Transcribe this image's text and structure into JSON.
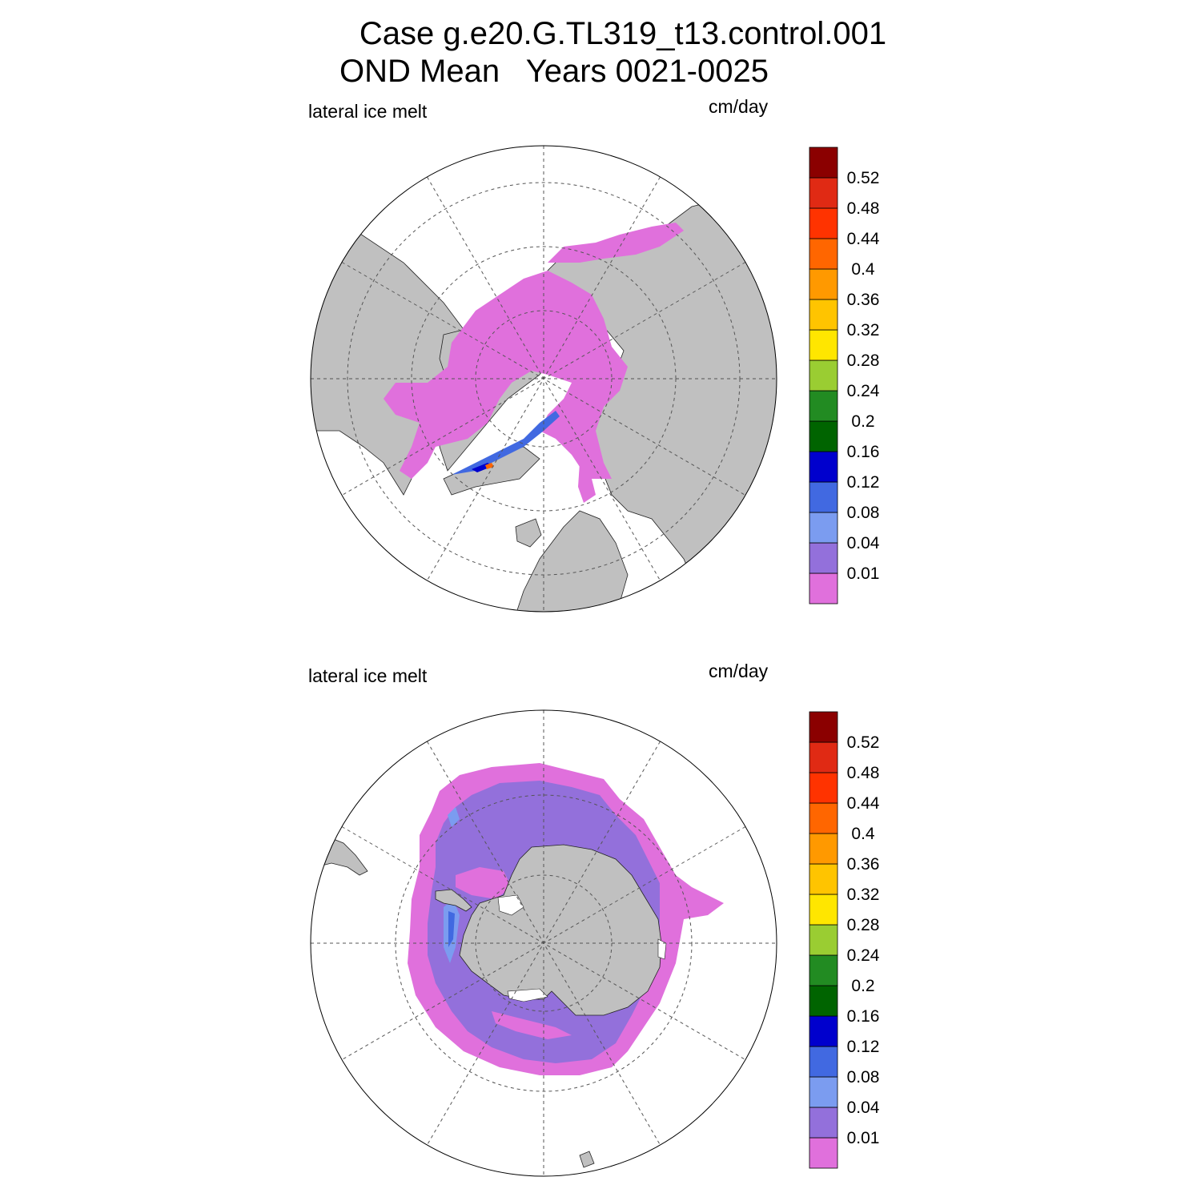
{
  "title": {
    "line1": "Case g.e20.G.TL319_t13.control.001",
    "line2": "OND Mean   Years 0021-0025"
  },
  "panels": [
    {
      "id": "north",
      "variable_label": "lateral ice melt",
      "units_label": "cm/day",
      "hemisphere": "Northern"
    },
    {
      "id": "south",
      "variable_label": "lateral ice melt",
      "units_label": "cm/day",
      "hemisphere": "Southern"
    }
  ],
  "colorbar": {
    "labels": [
      "0.01",
      "0.04",
      "0.08",
      "0.12",
      "0.16",
      "0.2",
      "0.24",
      "0.28",
      "0.32",
      "0.36",
      "0.4",
      "0.44",
      "0.48",
      "0.52"
    ],
    "colors": [
      "#e070dc",
      "#9370db",
      "#7b9cf0",
      "#4169e1",
      "#0000cd",
      "#006400",
      "#228b22",
      "#9acd32",
      "#ffe600",
      "#ffc400",
      "#ff9900",
      "#ff6600",
      "#ff3300",
      "#e02a14",
      "#8b0000"
    ]
  },
  "colors": {
    "land": "#c0c0c0",
    "ocean": "#ffffff",
    "grid": "#555555"
  }
}
